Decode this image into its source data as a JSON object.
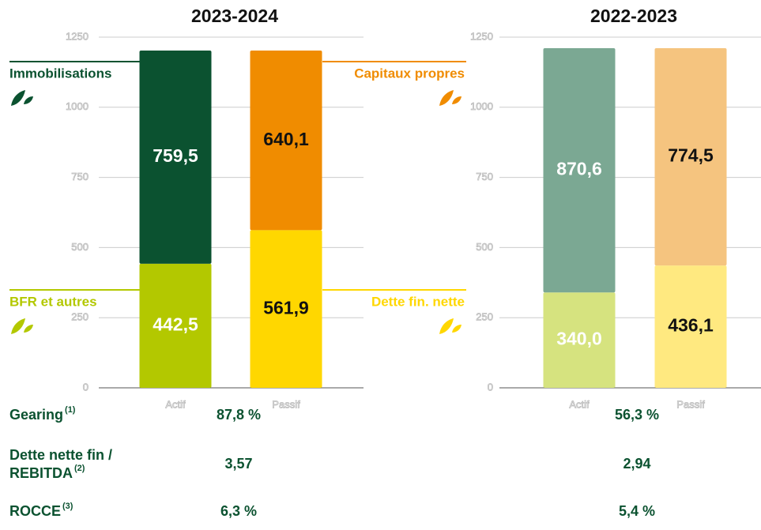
{
  "charts": [
    {
      "type": "bar",
      "stacked": true,
      "title": "2023-2024",
      "categories": [
        "Actif",
        "Passif"
      ],
      "ylim": [
        0,
        1250
      ],
      "yticks": [
        0,
        250,
        500,
        750,
        1000,
        1250
      ],
      "series": [
        {
          "name": "BFR et autres",
          "color": "#b3c800",
          "values": [
            442.5,
            null
          ],
          "value_labels": [
            "442,5",
            null
          ]
        },
        {
          "name": "Immobilisations",
          "color": "#0b5230",
          "values": [
            759.5,
            null
          ],
          "value_labels": [
            "759,5",
            null
          ]
        },
        {
          "name": "Dette fin. nette",
          "color": "#ffd700",
          "values": [
            null,
            561.9
          ],
          "value_labels": [
            null,
            "561,9"
          ]
        },
        {
          "name": "Capitaux propres",
          "color": "#f08c00",
          "values": [
            null,
            640.1
          ],
          "value_labels": [
            null,
            "640,1"
          ]
        }
      ]
    },
    {
      "type": "bar",
      "stacked": true,
      "title": "2022-2023",
      "categories": [
        "Actif",
        "Passif"
      ],
      "ylim": [
        0,
        1250
      ],
      "yticks": [
        0,
        250,
        500,
        750,
        1000,
        1250
      ],
      "series": [
        {
          "color": "#d6e37f",
          "values": [
            340.0,
            null
          ],
          "value_labels": [
            "340,0",
            null
          ]
        },
        {
          "color": "#7ba893",
          "values": [
            870.6,
            null
          ],
          "value_labels": [
            "870,6",
            null
          ]
        },
        {
          "color": "#ffe980",
          "values": [
            null,
            436.1
          ],
          "value_labels": [
            null,
            "436,1"
          ]
        },
        {
          "color": "#f5c47f",
          "values": [
            null,
            774.5
          ],
          "value_labels": [
            null,
            "774,5"
          ]
        }
      ]
    }
  ],
  "metrics": [
    {
      "label": [
        "Gearing"
      ],
      "note": "(1)",
      "values": [
        "87,8 %",
        "56,3 %"
      ]
    },
    {
      "label": [
        "Dette nette fin /",
        "REBITDA"
      ],
      "note": "(2)",
      "values": [
        "3,57",
        "2,94"
      ]
    },
    {
      "label": [
        "ROCCE "
      ],
      "note": "(3)",
      "values": [
        "6,3 %",
        "5,4 %"
      ]
    }
  ]
}
